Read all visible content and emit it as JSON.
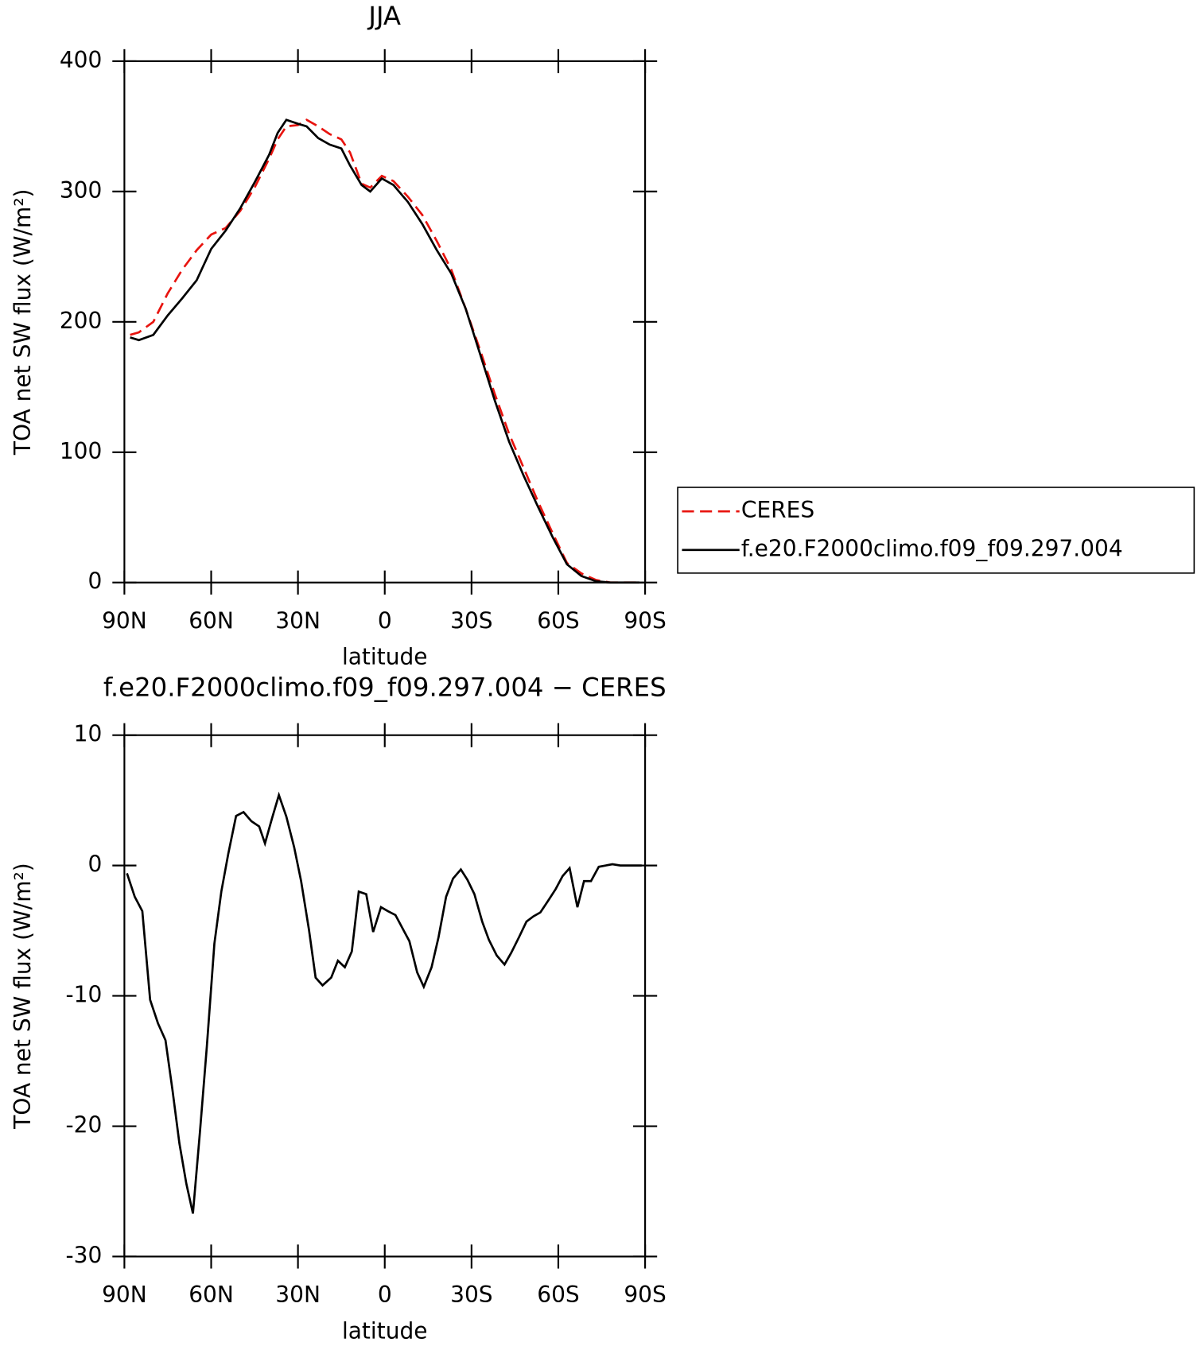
{
  "chart_data": [
    {
      "type": "line",
      "title": "JJA",
      "xlabel": "latitude",
      "ylabel": "TOA net SW flux (W/m²)",
      "x": [
        88,
        85,
        80,
        75,
        70,
        65,
        60,
        55,
        50,
        45,
        40,
        37,
        34,
        30,
        27,
        23,
        19,
        15,
        12,
        8,
        5,
        1,
        -3,
        -8,
        -13,
        -18,
        -23,
        -28,
        -33,
        -38,
        -43,
        -48,
        -53,
        -58,
        -63,
        -68,
        -73,
        -78,
        -83,
        -88
      ],
      "series": [
        {
          "name": "CERES",
          "color": "#e8140f",
          "dash": "dashed",
          "values": [
            190,
            192,
            200,
            222,
            240,
            255,
            267,
            272,
            285,
            303,
            325,
            340,
            350,
            351,
            355,
            350,
            344,
            340,
            330,
            306,
            303,
            312,
            308,
            296,
            282,
            262,
            240,
            210,
            178,
            145,
            114,
            88,
            62,
            38,
            15,
            7,
            2,
            0,
            0,
            0
          ]
        },
        {
          "name": "f.e20.F2000climo.f09_f09.297.004",
          "color": "#000000",
          "dash": "solid",
          "values": [
            188,
            186,
            190,
            205,
            218,
            232,
            256,
            270,
            287,
            307,
            328,
            345,
            355,
            352,
            350,
            341,
            336,
            333,
            320,
            305,
            300,
            310,
            305,
            292,
            275,
            255,
            237,
            210,
            175,
            140,
            108,
            82,
            58,
            35,
            14,
            5,
            1,
            0,
            0,
            0
          ]
        }
      ],
      "xlim": [
        90,
        -90
      ],
      "ylim": [
        0,
        400
      ],
      "xticks": [
        {
          "value": 90,
          "label": "90N"
        },
        {
          "value": 60,
          "label": "60N"
        },
        {
          "value": 30,
          "label": "30N"
        },
        0,
        {
          "value": -30,
          "label": "30S"
        },
        {
          "value": -60,
          "label": "60S"
        },
        {
          "value": -90,
          "label": "90S"
        }
      ],
      "yticks": [
        0,
        100,
        200,
        300,
        400
      ],
      "legend": "right"
    },
    {
      "type": "line",
      "title": "f.e20.F2000climo.f09_f09.297.004 − CERES",
      "xlabel": "latitude",
      "ylabel": "TOA net SW flux (W/m²)",
      "x": [
        89.1,
        86.4,
        83.8,
        81.1,
        78.4,
        75.8,
        73.4,
        71.0,
        68.6,
        66.3,
        63.9,
        61.5,
        58.9,
        56.5,
        54.1,
        51.4,
        48.8,
        46.1,
        43.4,
        41.4,
        39.0,
        36.6,
        34.0,
        31.3,
        28.9,
        26.2,
        23.9,
        21.5,
        18.5,
        16.2,
        13.8,
        11.4,
        9.0,
        6.4,
        4.0,
        1.3,
        -1.1,
        -3.7,
        -6.1,
        -8.5,
        -11.2,
        -13.5,
        -16.2,
        -18.6,
        -21.2,
        -23.6,
        -26.3,
        -28.6,
        -31.0,
        -33.7,
        -36.0,
        -38.7,
        -41.4,
        -43.7,
        -46.4,
        -49.0,
        -51.4,
        -53.8,
        -56.5,
        -59.1,
        -61.5,
        -63.9,
        -66.6,
        -68.9,
        -71.3,
        -74.0,
        -76.3,
        -78.7,
        -81.4,
        -83.8,
        -86.5,
        -88.8
      ],
      "values": [
        -0.6,
        -2.4,
        -3.5,
        -10.3,
        -12.1,
        -13.4,
        -17.2,
        -21.3,
        -24.4,
        -26.7,
        -20.5,
        -13.9,
        -6.0,
        -2.0,
        0.9,
        3.8,
        4.1,
        3.4,
        3.0,
        1.7,
        3.6,
        5.4,
        3.75,
        1.4,
        -1.2,
        -4.9,
        -8.6,
        -9.2,
        -8.6,
        -7.3,
        -7.8,
        -6.6,
        -2.0,
        -2.2,
        -5.1,
        -3.2,
        -3.5,
        -3.8,
        -4.8,
        -5.8,
        -8.2,
        -9.3,
        -7.8,
        -5.5,
        -2.4,
        -1.0,
        -0.3,
        -1.1,
        -2.2,
        -4.3,
        -5.7,
        -6.9,
        -7.6,
        -6.7,
        -5.5,
        -4.3,
        -3.9,
        -3.6,
        -2.7,
        -1.8,
        -0.8,
        -0.2,
        -3.2,
        -1.2,
        -1.2,
        -0.1,
        0,
        0.1,
        0,
        0,
        0,
        0
      ],
      "color": "#000000",
      "xlim": [
        90,
        -90
      ],
      "ylim": [
        -30,
        10
      ],
      "xticks": [
        {
          "value": 90,
          "label": "90N"
        },
        {
          "value": 60,
          "label": "60N"
        },
        {
          "value": 30,
          "label": "30N"
        },
        0,
        {
          "value": -30,
          "label": "30S"
        },
        {
          "value": -60,
          "label": "60S"
        },
        {
          "value": -90,
          "label": "90S"
        }
      ],
      "yticks": [
        -30,
        -20,
        -10,
        0,
        10
      ]
    }
  ]
}
